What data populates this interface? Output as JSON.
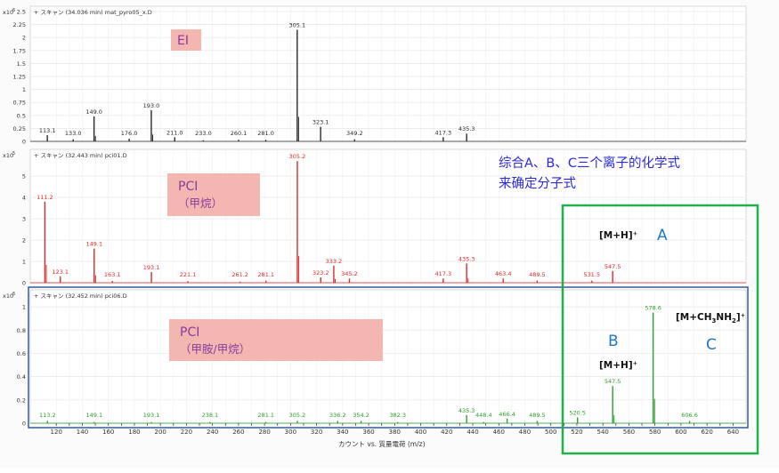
{
  "xaxis": {
    "ticks": [
      120,
      130,
      140,
      150,
      160,
      170,
      180,
      190,
      200,
      210,
      220,
      230,
      240,
      250,
      260,
      270,
      280,
      290,
      300,
      310,
      320,
      330,
      340,
      350,
      360,
      370,
      380,
      390,
      400,
      410,
      420,
      430,
      440,
      450,
      460,
      470,
      480,
      490,
      500,
      510,
      520,
      530,
      540,
      550,
      560,
      570,
      580,
      590,
      600,
      610,
      620,
      630,
      640
    ],
    "tick_labels": [
      "120",
      "140",
      "160",
      "180",
      "200",
      "220",
      "240",
      "260",
      "280",
      "300",
      "320",
      "340",
      "360",
      "380",
      "400",
      "420",
      "440",
      "460",
      "480",
      "500",
      "520",
      "540",
      "560",
      "580",
      "600",
      "620",
      "640"
    ],
    "label": "カウント vs. 質量電荷 (m/z)"
  },
  "annotations": {
    "summary_line1": "综合A、B、C三个离子的化学式",
    "summary_line2": "来确定分子式",
    "ion_A_label": "[M+H]⁺",
    "ion_A_letter": "A",
    "ion_B_label": "[M+H]⁺",
    "ion_B_letter": "B",
    "ion_C_label_main": "[M+CH",
    "ion_C_sub1": "3",
    "ion_C_mid": "NH",
    "ion_C_sub2": "2",
    "ion_C_end": "]⁺",
    "ion_C_letter": "C"
  },
  "colors": {
    "ei": "#2a2a2a",
    "pci_methane": "#e02a2a",
    "pci_methylamine": "#2e9e2e",
    "tag_bg": "#f4b6b0",
    "tag_text": "#8b3a9e",
    "note_text": "#2a2ad8",
    "letters": "#1f78c8",
    "green_frame": "#21b04a",
    "blue_frame": "#2f5c9e"
  },
  "chart_data": [
    {
      "type": "bar",
      "name": "EI",
      "header": "+ スキャン (34.036 min) mat_pyro05_x.D",
      "exponent": "x10",
      "exponent_power": "6",
      "tag": "EI",
      "tag_sub": "",
      "ylim": [
        0,
        2.5
      ],
      "yticks": [
        "0",
        "0.25",
        "0.5",
        "0.75",
        "1",
        "1.25",
        "1.5",
        "1.75",
        "2",
        "2.25",
        "2.5"
      ],
      "peaks": [
        {
          "mz": 113.1,
          "intensity": 0.12,
          "label": "113.1"
        },
        {
          "mz": 133.0,
          "intensity": 0.04,
          "label": "133.0"
        },
        {
          "mz": 149.0,
          "intensity": 0.48,
          "label": "149.0"
        },
        {
          "mz": 176.0,
          "intensity": 0.05,
          "label": "176.0"
        },
        {
          "mz": 193.0,
          "intensity": 0.6,
          "label": "193.0"
        },
        {
          "mz": 211.0,
          "intensity": 0.08,
          "label": "211.0"
        },
        {
          "mz": 233.0,
          "intensity": 0.02,
          "label": "233.0"
        },
        {
          "mz": 260.1,
          "intensity": 0.03,
          "label": "260.1"
        },
        {
          "mz": 281.0,
          "intensity": 0.03,
          "label": "281.0"
        },
        {
          "mz": 305.1,
          "intensity": 2.15,
          "label": "305.1"
        },
        {
          "mz": 323.1,
          "intensity": 0.28,
          "label": "323.1"
        },
        {
          "mz": 349.2,
          "intensity": 0.04,
          "label": "349.2"
        },
        {
          "mz": 417.3,
          "intensity": 0.08,
          "label": "417.3"
        },
        {
          "mz": 435.3,
          "intensity": 0.15,
          "label": "435.3"
        }
      ]
    },
    {
      "type": "bar",
      "name": "PCI (methane)",
      "header": "+ スキャン (32.443 min) pci01.D",
      "exponent": "x10",
      "exponent_power": "5",
      "tag": "PCI",
      "tag_sub": "（甲烷）",
      "ylim": [
        0,
        6
      ],
      "yticks": [
        "0",
        "1",
        "2",
        "3",
        "4",
        "5"
      ],
      "peaks": [
        {
          "mz": 111.2,
          "intensity": 3.8,
          "label": "111.2"
        },
        {
          "mz": 123.1,
          "intensity": 0.3,
          "label": "123.1"
        },
        {
          "mz": 149.1,
          "intensity": 1.6,
          "label": "149.1"
        },
        {
          "mz": 163.1,
          "intensity": 0.08,
          "label": "163.1"
        },
        {
          "mz": 193.1,
          "intensity": 0.5,
          "label": "193.1"
        },
        {
          "mz": 221.1,
          "intensity": 0.07,
          "label": "221.1"
        },
        {
          "mz": 261.2,
          "intensity": 0.05,
          "label": "261.2"
        },
        {
          "mz": 281.1,
          "intensity": 0.1,
          "label": "281.1"
        },
        {
          "mz": 305.2,
          "intensity": 5.7,
          "label": "305.2"
        },
        {
          "mz": 323.2,
          "intensity": 0.25,
          "label": "323.2"
        },
        {
          "mz": 333.2,
          "intensity": 0.8,
          "label": "333.2"
        },
        {
          "mz": 345.2,
          "intensity": 0.2,
          "label": "345.2"
        },
        {
          "mz": 417.3,
          "intensity": 0.2,
          "label": "417.3"
        },
        {
          "mz": 435.3,
          "intensity": 0.9,
          "label": "435.3"
        },
        {
          "mz": 463.4,
          "intensity": 0.2,
          "label": "463.4"
        },
        {
          "mz": 489.5,
          "intensity": 0.1,
          "label": "489.5"
        },
        {
          "mz": 531.5,
          "intensity": 0.1,
          "label": "531.5"
        },
        {
          "mz": 547.5,
          "intensity": 0.55,
          "label": "547.5"
        }
      ]
    },
    {
      "type": "bar",
      "name": "PCI (methylamine/methane)",
      "header": "+ スキャン (32.452 min) pci06.D",
      "exponent": "x10",
      "exponent_power": "6",
      "tag": "PCI",
      "tag_sub": "（甲胺/甲烷）",
      "ylim": [
        0,
        1.1
      ],
      "yticks": [
        "0",
        "0.2",
        "0.4",
        "0.6",
        "0.8",
        "1"
      ],
      "peaks": [
        {
          "mz": 113.2,
          "intensity": 0.02,
          "label": "113.2"
        },
        {
          "mz": 149.1,
          "intensity": 0.01,
          "label": "149.1"
        },
        {
          "mz": 193.1,
          "intensity": 0.01,
          "label": "193.1"
        },
        {
          "mz": 238.1,
          "intensity": 0.01,
          "label": "238.1"
        },
        {
          "mz": 281.1,
          "intensity": 0.01,
          "label": "281.1"
        },
        {
          "mz": 305.2,
          "intensity": 0.02,
          "label": "305.2"
        },
        {
          "mz": 336.2,
          "intensity": 0.02,
          "label": "336.2"
        },
        {
          "mz": 354.2,
          "intensity": 0.02,
          "label": "354.2"
        },
        {
          "mz": 382.3,
          "intensity": 0.01,
          "label": "382.3"
        },
        {
          "mz": 435.3,
          "intensity": 0.07,
          "label": "435.3"
        },
        {
          "mz": 448.4,
          "intensity": 0.01,
          "label": "448.4"
        },
        {
          "mz": 466.4,
          "intensity": 0.04,
          "label": "466.4"
        },
        {
          "mz": 489.5,
          "intensity": 0.02,
          "label": "489.5"
        },
        {
          "mz": 520.5,
          "intensity": 0.05,
          "label": "520.5"
        },
        {
          "mz": 547.5,
          "intensity": 0.32,
          "label": "547.5"
        },
        {
          "mz": 578.6,
          "intensity": 0.95,
          "label": "578.6"
        },
        {
          "mz": 606.6,
          "intensity": 0.02,
          "label": "606.6"
        }
      ]
    }
  ]
}
